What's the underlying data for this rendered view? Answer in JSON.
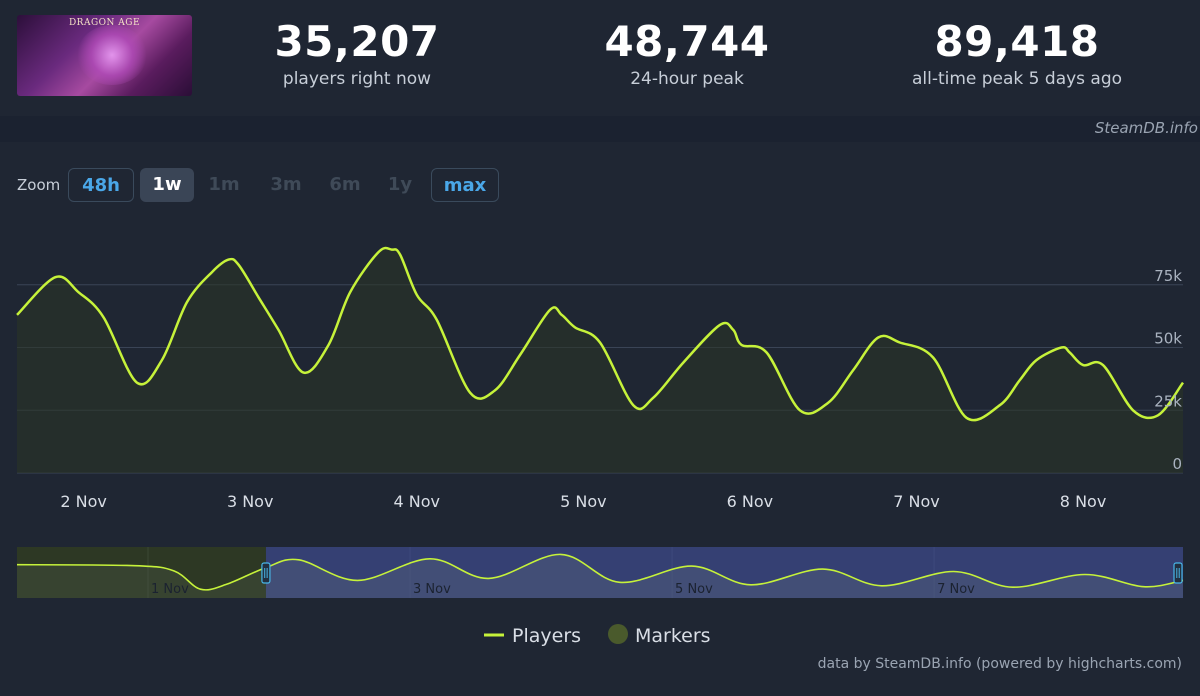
{
  "header": {
    "thumbnail_text": "DRAGON AGE",
    "stats": [
      {
        "value": "35,207",
        "label": "players right now"
      },
      {
        "value": "48,744",
        "label": "24-hour peak"
      },
      {
        "value": "89,418",
        "label": "all-time peak 5 days ago"
      }
    ]
  },
  "watermark": "SteamDB.info",
  "zoom": {
    "label": "Zoom",
    "buttons": [
      {
        "label": "48h",
        "state": "outlined"
      },
      {
        "label": "1w",
        "state": "active"
      },
      {
        "label": "1m",
        "state": "disabled"
      },
      {
        "label": "3m",
        "state": "disabled"
      },
      {
        "label": "6m",
        "state": "disabled"
      },
      {
        "label": "1y",
        "state": "disabled"
      },
      {
        "label": "max",
        "state": "outlined"
      }
    ]
  },
  "chart_data": {
    "type": "area",
    "xlabel": "",
    "ylabel": "",
    "ylim": [
      0,
      100000
    ],
    "y_ticks": [
      0,
      25000,
      50000,
      75000
    ],
    "y_tick_labels": [
      "0",
      "25k",
      "50k",
      "75k"
    ],
    "x_tick_labels": [
      "2 Nov",
      "3 Nov",
      "4 Nov",
      "5 Nov",
      "6 Nov",
      "7 Nov",
      "8 Nov"
    ],
    "x_range_days": [
      1.6,
      8.6
    ],
    "grid": true,
    "legend": {
      "placement": "bottom-center",
      "items": [
        "Players",
        "Markers"
      ]
    },
    "colors": {
      "line": "#c6f23a",
      "marker": "#4a5a2c",
      "grid": "#3a4456",
      "navigator_mask": "#3f4b8a"
    },
    "series": [
      {
        "name": "Players",
        "x": [
          1.6,
          1.83,
          1.97,
          2.12,
          2.32,
          2.47,
          2.62,
          2.77,
          2.87,
          2.93,
          3.05,
          3.17,
          3.32,
          3.47,
          3.6,
          3.77,
          3.85,
          3.9,
          4.0,
          4.12,
          4.32,
          4.47,
          4.62,
          4.8,
          4.87,
          4.95,
          5.1,
          5.3,
          5.42,
          5.6,
          5.82,
          5.9,
          5.95,
          6.1,
          6.3,
          6.47,
          6.62,
          6.77,
          6.9,
          7.1,
          7.3,
          7.5,
          7.62,
          7.72,
          7.87,
          7.92,
          8.0,
          8.12,
          8.3,
          8.45,
          8.6
        ],
        "y": [
          63000,
          78000,
          72000,
          62000,
          36000,
          45000,
          68000,
          80000,
          85000,
          83000,
          70000,
          57000,
          40000,
          51000,
          72000,
          88000,
          89000,
          87000,
          71000,
          61000,
          32000,
          33000,
          47000,
          65000,
          63000,
          58000,
          52000,
          27000,
          30000,
          44000,
          59000,
          57000,
          51000,
          48000,
          25000,
          28000,
          41000,
          54000,
          52000,
          46000,
          22000,
          27000,
          37000,
          45000,
          50000,
          48000,
          43000,
          43000,
          25000,
          23000,
          36000
        ]
      }
    ],
    "navigator": {
      "x_tick_labels": [
        "1 Nov",
        "3 Nov",
        "5 Nov",
        "7 Nov"
      ],
      "x_range_days": [
        -0.3,
        8.6
      ],
      "selection_days": [
        1.6,
        8.6
      ],
      "x": [
        -0.3,
        0.6,
        0.9,
        1.1,
        1.3,
        1.6,
        1.85,
        2.3,
        2.85,
        3.3,
        3.85,
        4.3,
        4.85,
        5.3,
        5.85,
        6.3,
        6.85,
        7.3,
        7.85,
        8.3,
        8.6
      ],
      "y": [
        68000,
        66000,
        55000,
        18000,
        28000,
        62000,
        78000,
        36000,
        80000,
        40000,
        89000,
        32000,
        65000,
        27000,
        59000,
        25000,
        54000,
        22000,
        48000,
        23000,
        36000
      ]
    }
  },
  "footer": "data by SteamDB.info (powered by highcharts.com)"
}
